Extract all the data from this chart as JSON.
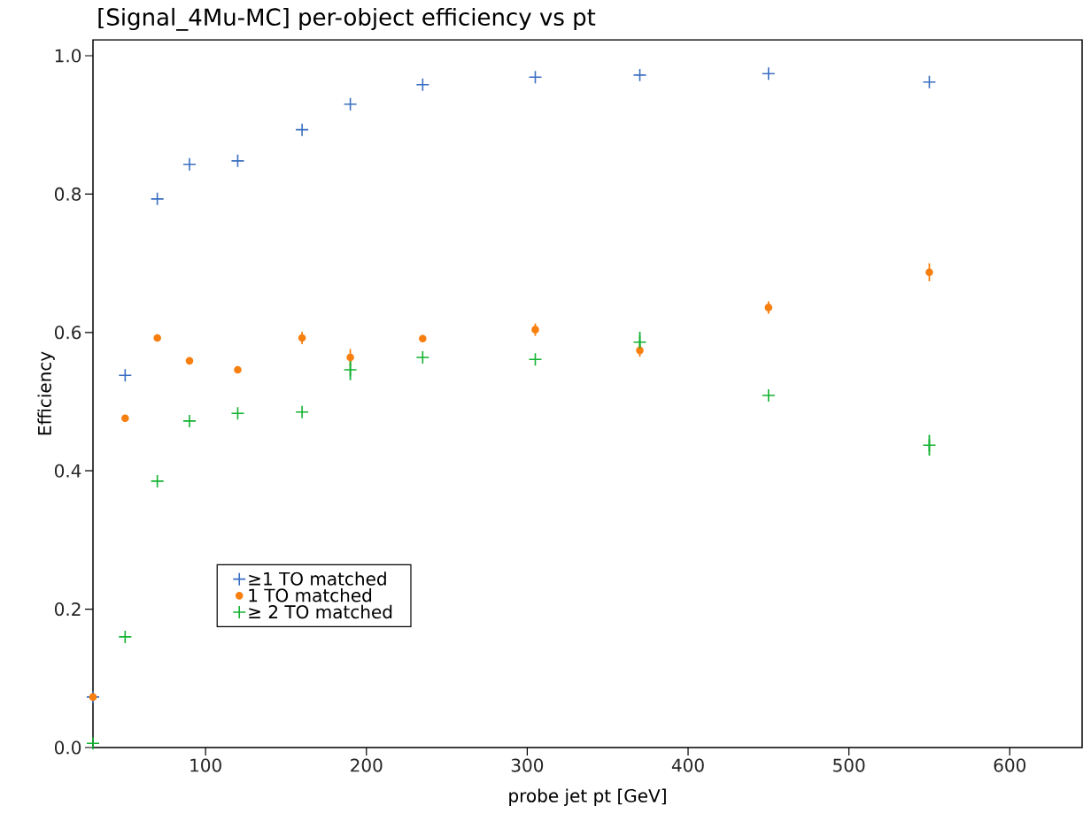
{
  "chart_data": {
    "type": "scatter",
    "title": "[Signal_4Mu-MC] per-object efficiency vs pt",
    "xlabel": "probe jet pt [GeV]",
    "ylabel": "Efficiency",
    "x": [
      30,
      50,
      70,
      90,
      120,
      160,
      190,
      235,
      305,
      370,
      450,
      550
    ],
    "xlim": [
      30,
      645
    ],
    "xticks": [
      100,
      200,
      300,
      400,
      500,
      600
    ],
    "ylim": [
      0,
      1.023
    ],
    "yticks": [
      {
        "value": 0,
        "label": "0.0"
      },
      0.2,
      0.4,
      0.6,
      0.8,
      {
        "value": 1,
        "label": "1.0"
      }
    ],
    "legend": "bottom left",
    "series": [
      {
        "name": "≥1 TO matched",
        "color": "#3a6fc0",
        "marker": "cross",
        "values": [
          0.073,
          0.538,
          0.793,
          0.843,
          0.848,
          0.893,
          0.93,
          0.958,
          0.969,
          0.972,
          0.974,
          0.962
        ]
      },
      {
        "name": "1 TO matched",
        "color": "#f77f10",
        "marker": "circle",
        "values": [
          0.073,
          0.476,
          0.592,
          0.559,
          0.546,
          0.592,
          0.564,
          0.591,
          0.604,
          0.574,
          0.636,
          0.687
        ],
        "errors": [
          null,
          null,
          null,
          null,
          null,
          0.009,
          0.012,
          null,
          0.009,
          0.009,
          0.009,
          0.013
        ]
      },
      {
        "name": "≥ 2 TO matched",
        "color": "#13b232",
        "marker": "cross",
        "values": [
          0.006,
          0.16,
          0.385,
          0.472,
          0.483,
          0.485,
          0.546,
          0.564,
          0.561,
          0.586,
          0.509,
          0.437
        ],
        "errors": [
          null,
          null,
          null,
          null,
          null,
          null,
          0.015,
          null,
          null,
          0.015,
          null,
          0.015
        ]
      }
    ]
  }
}
